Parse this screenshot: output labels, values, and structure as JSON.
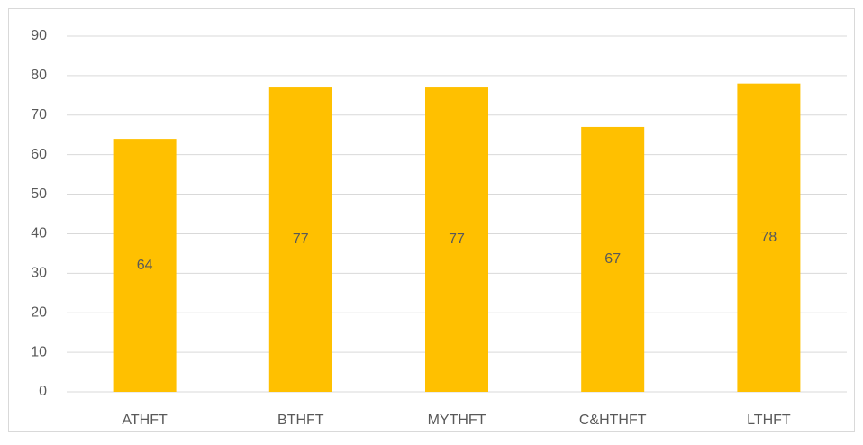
{
  "chart_data": {
    "type": "bar",
    "categories": [
      "ATHFT",
      "BTHFT",
      "MYTHFT",
      "C&HTHFT",
      "LTHFT"
    ],
    "values": [
      64,
      77,
      77,
      67,
      78
    ],
    "color": "#ffc000",
    "ylim": [
      0,
      90
    ],
    "yticks": [
      0,
      10,
      20,
      30,
      40,
      50,
      60,
      70,
      80,
      90
    ],
    "grid": true,
    "data_labels": true
  }
}
